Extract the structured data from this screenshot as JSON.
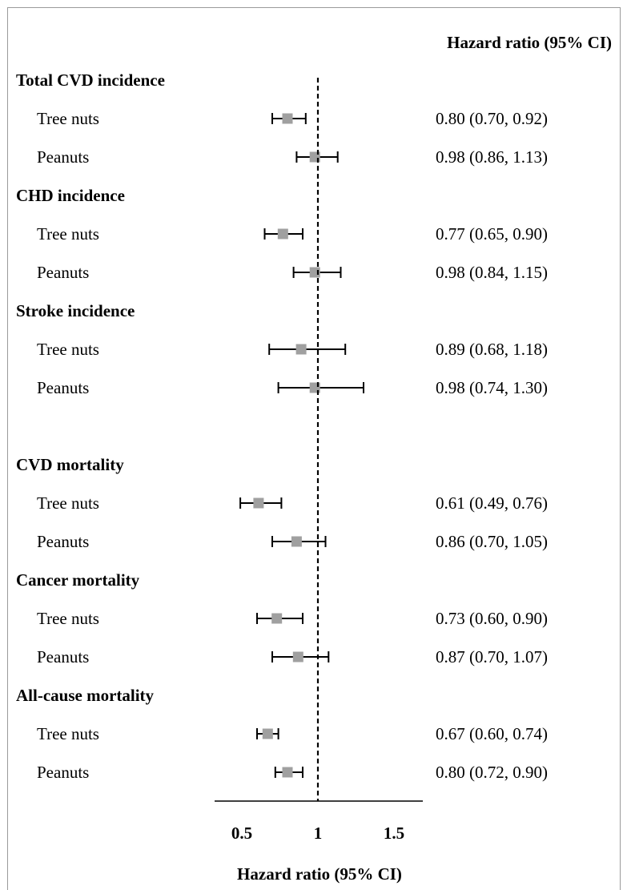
{
  "chart_data": {
    "type": "forest",
    "column_header": "Hazard ratio (95% CI)",
    "xlabel": "Hazard ratio (95% CI)",
    "xlim": [
      0.3,
      1.75
    ],
    "xticks": [
      "0.5",
      "1",
      "1.5"
    ],
    "reference_line": 1,
    "marker_color": "#a0a0a0",
    "groups": [
      {
        "name": "Total CVD incidence",
        "rows": [
          {
            "label": "Tree nuts",
            "hr": 0.8,
            "lo": 0.7,
            "hi": 0.92,
            "text": "0.80 (0.70, 0.92)"
          },
          {
            "label": "Peanuts",
            "hr": 0.98,
            "lo": 0.86,
            "hi": 1.13,
            "text": "0.98 (0.86, 1.13)"
          }
        ]
      },
      {
        "name": "CHD incidence",
        "rows": [
          {
            "label": "Tree nuts",
            "hr": 0.77,
            "lo": 0.65,
            "hi": 0.9,
            "text": "0.77 (0.65, 0.90)"
          },
          {
            "label": "Peanuts",
            "hr": 0.98,
            "lo": 0.84,
            "hi": 1.15,
            "text": "0.98 (0.84, 1.15)"
          }
        ]
      },
      {
        "name": "Stroke incidence",
        "rows": [
          {
            "label": "Tree nuts",
            "hr": 0.89,
            "lo": 0.68,
            "hi": 1.18,
            "text": "0.89 (0.68, 1.18)"
          },
          {
            "label": "Peanuts",
            "hr": 0.98,
            "lo": 0.74,
            "hi": 1.3,
            "text": "0.98 (0.74, 1.30)"
          }
        ]
      },
      {
        "name": "CVD mortality",
        "rows": [
          {
            "label": "Tree nuts",
            "hr": 0.61,
            "lo": 0.49,
            "hi": 0.76,
            "text": "0.61 (0.49, 0.76)"
          },
          {
            "label": "Peanuts",
            "hr": 0.86,
            "lo": 0.7,
            "hi": 1.05,
            "text": "0.86 (0.70, 1.05)"
          }
        ]
      },
      {
        "name": "Cancer mortality",
        "rows": [
          {
            "label": "Tree nuts",
            "hr": 0.73,
            "lo": 0.6,
            "hi": 0.9,
            "text": "0.73 (0.60, 0.90)"
          },
          {
            "label": "Peanuts",
            "hr": 0.87,
            "lo": 0.7,
            "hi": 1.07,
            "text": "0.87 (0.70, 1.07)"
          }
        ]
      },
      {
        "name": "All-cause mortality",
        "rows": [
          {
            "label": "Tree nuts",
            "hr": 0.67,
            "lo": 0.6,
            "hi": 0.74,
            "text": "0.67 (0.60, 0.74)"
          },
          {
            "label": "Peanuts",
            "hr": 0.8,
            "lo": 0.72,
            "hi": 0.9,
            "text": "0.80 (0.72, 0.90)"
          }
        ]
      }
    ]
  }
}
